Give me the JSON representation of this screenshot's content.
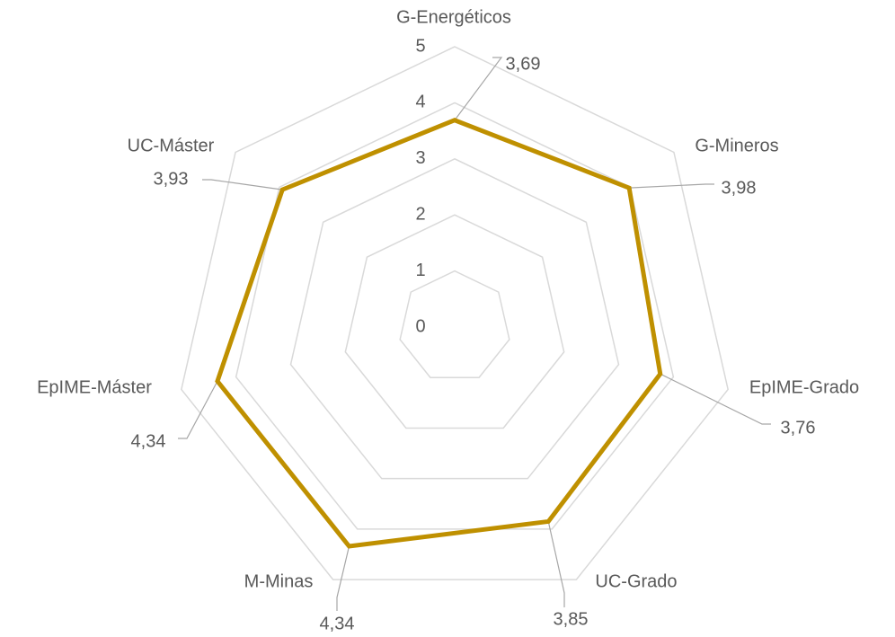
{
  "chart_data": {
    "type": "radar",
    "categories": [
      "G-Energéticos",
      "G-Mineros",
      "EpIME-Grado",
      "UC-Grado",
      "M-Minas",
      "EpIME-Máster",
      "UC-Máster"
    ],
    "values": [
      3.69,
      3.98,
      3.76,
      3.85,
      4.34,
      4.34,
      3.93
    ],
    "value_labels": [
      "3,69",
      "3,98",
      "3,76",
      "3,85",
      "4,34",
      "4,34",
      "3,93"
    ],
    "color": "#bf9000",
    "ylim": [
      0,
      5
    ],
    "yticks": [
      0,
      1,
      2,
      3,
      4,
      5
    ],
    "grid": true
  }
}
